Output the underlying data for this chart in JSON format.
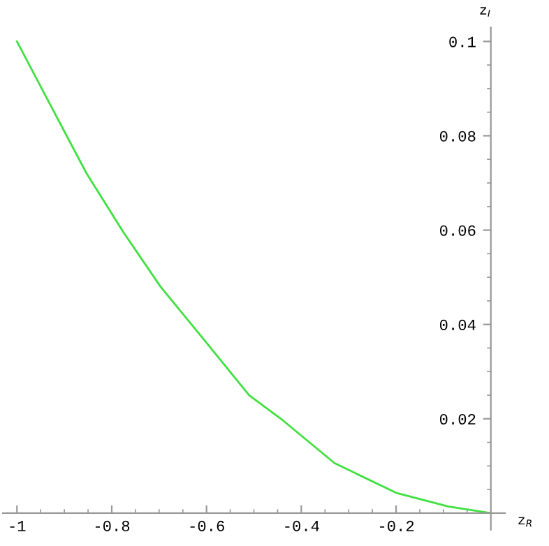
{
  "chart_data": {
    "type": "line",
    "xlabel": "z$_{R}$",
    "ylabel": "z$_{I}$",
    "x": [
      -1,
      -0.932,
      -0.853,
      -0.775,
      -0.697,
      -0.604,
      -0.51,
      -0.443,
      -0.33,
      -0.2,
      -0.09,
      0
    ],
    "series": [
      {
        "color": "#40e040",
        "values": [
          0.1,
          0.087,
          0.072,
          0.0595,
          0.048,
          0.0366,
          0.025,
          0.02,
          0.0106,
          0.0043,
          0.0014,
          0
        ]
      }
    ],
    "xlim": [
      -1.03,
      0.03
    ],
    "ylim": [
      -0.0035,
      0.103
    ],
    "xticks": [
      -1,
      -0.8,
      -0.6,
      -0.4,
      -0.2
    ],
    "yticks": [
      0.02,
      0.04,
      0.06,
      0.08,
      0.1
    ],
    "grid": false,
    "legend": false
  }
}
